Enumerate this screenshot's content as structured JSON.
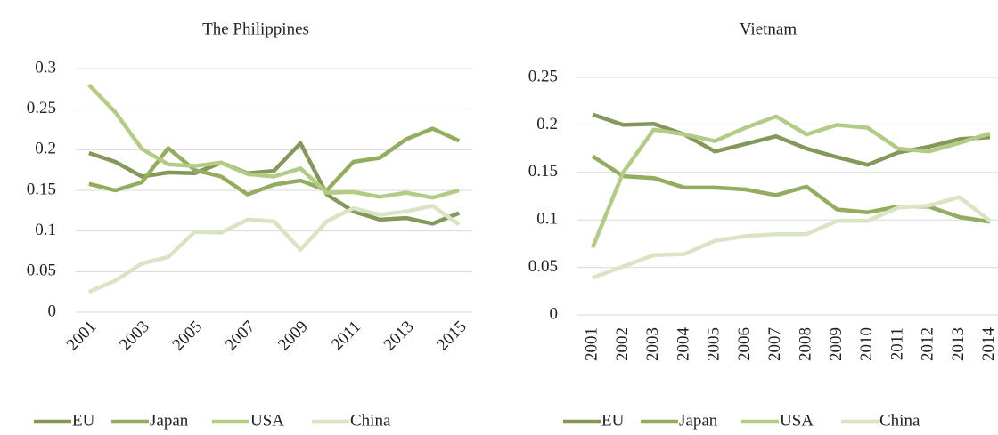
{
  "chart_data": [
    {
      "type": "line",
      "title": "The Philippines",
      "categories": [
        "2001",
        null,
        "2003",
        null,
        "2005",
        null,
        "2007",
        null,
        "2009",
        null,
        "2011",
        null,
        "2013",
        null,
        "2015"
      ],
      "ylim": [
        0,
        0.3
      ],
      "yticks": [
        0,
        0.05,
        0.1,
        0.15,
        0.2,
        0.25,
        0.3
      ],
      "grid": true,
      "legend": "bottom",
      "series": [
        {
          "name": "EU",
          "color": "#84985a",
          "values": [
            0.196,
            0.185,
            0.167,
            0.172,
            0.171,
            0.184,
            0.171,
            0.174,
            0.208,
            0.145,
            0.124,
            0.114,
            0.116,
            0.109,
            0.122
          ]
        },
        {
          "name": "Japan",
          "color": "#93ad5e",
          "values": [
            0.158,
            0.15,
            0.16,
            0.202,
            0.175,
            0.167,
            0.145,
            0.157,
            0.162,
            0.15,
            0.185,
            0.19,
            0.213,
            0.226,
            0.211
          ]
        },
        {
          "name": "USA",
          "color": "#b2cc85",
          "values": [
            0.28,
            0.246,
            0.201,
            0.182,
            0.18,
            0.184,
            0.17,
            0.167,
            0.177,
            0.147,
            0.148,
            0.142,
            0.147,
            0.141,
            0.15
          ]
        },
        {
          "name": "China",
          "color": "#d8e4c4",
          "values": [
            0.025,
            0.039,
            0.06,
            0.068,
            0.099,
            0.098,
            0.114,
            0.112,
            0.077,
            0.112,
            0.128,
            0.12,
            0.124,
            0.131,
            0.108
          ]
        }
      ]
    },
    {
      "type": "line",
      "title": "Vietnam",
      "categories": [
        "2001",
        "2002",
        "2003",
        "2004",
        "2005",
        "2006",
        "2007",
        "2008",
        "2009",
        "2010",
        "2011",
        "2012",
        "2013",
        "2014"
      ],
      "ylim": [
        0,
        0.25
      ],
      "yticks": [
        0,
        0.05,
        0.1,
        0.15,
        0.2,
        0.25
      ],
      "grid": true,
      "legend": "bottom",
      "series": [
        {
          "name": "EU",
          "color": "#84985a",
          "values": [
            0.211,
            0.2,
            0.201,
            0.19,
            0.172,
            0.18,
            0.188,
            0.175,
            0.166,
            0.158,
            0.171,
            0.177,
            0.185,
            0.187
          ]
        },
        {
          "name": "Japan",
          "color": "#93ad5e",
          "values": [
            0.167,
            0.146,
            0.144,
            0.134,
            0.134,
            0.132,
            0.126,
            0.135,
            0.111,
            0.108,
            0.114,
            0.114,
            0.103,
            0.098
          ]
        },
        {
          "name": "USA",
          "color": "#b2cc85",
          "values": [
            0.071,
            0.15,
            0.195,
            0.19,
            0.183,
            0.197,
            0.209,
            0.19,
            0.2,
            0.197,
            0.175,
            0.172,
            0.181,
            0.191
          ]
        },
        {
          "name": "China",
          "color": "#d8e4c4",
          "values": [
            0.039,
            0.051,
            0.063,
            0.064,
            0.078,
            0.083,
            0.085,
            0.085,
            0.099,
            0.099,
            0.113,
            0.115,
            0.124,
            0.099
          ]
        }
      ]
    }
  ]
}
